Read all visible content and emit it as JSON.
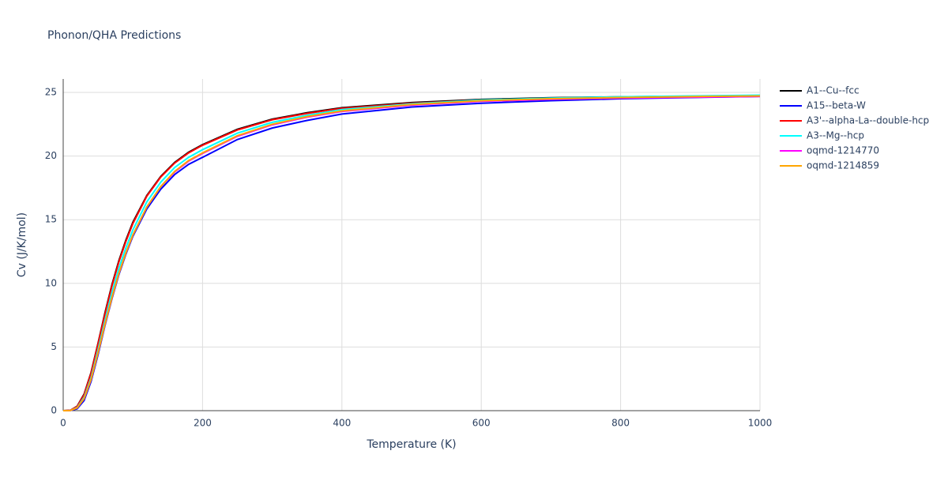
{
  "chart_data": {
    "type": "line",
    "title": "Phonon/QHA Predictions",
    "x_label": "Temperature (K)",
    "y_label": "Cv (J/K/mol)",
    "x": [
      0,
      10,
      20,
      30,
      40,
      50,
      60,
      70,
      80,
      90,
      100,
      120,
      140,
      160,
      180,
      200,
      250,
      300,
      350,
      400,
      500,
      600,
      700,
      800,
      900,
      1000
    ],
    "series": [
      {
        "name": "A1--Cu--fcc",
        "color": "#000000",
        "values": [
          0,
          0.02,
          0.35,
          1.3,
          3.0,
          5.3,
          7.7,
          9.9,
          11.8,
          13.4,
          14.8,
          16.9,
          18.4,
          19.5,
          20.3,
          20.9,
          22.1,
          22.9,
          23.4,
          23.8,
          24.2,
          24.45,
          24.58,
          24.65,
          24.7,
          24.75
        ]
      },
      {
        "name": "A15--beta-W",
        "color": "#0000ff",
        "values": [
          0,
          0.005,
          0.15,
          0.8,
          2.3,
          4.4,
          6.7,
          8.8,
          10.7,
          12.3,
          13.7,
          15.85,
          17.4,
          18.55,
          19.35,
          19.9,
          21.3,
          22.2,
          22.8,
          23.3,
          23.85,
          24.15,
          24.35,
          24.5,
          24.6,
          24.68
        ]
      },
      {
        "name": "A3'--alpha-La--double-hcp",
        "color": "#ff0000",
        "values": [
          0,
          0.02,
          0.33,
          1.25,
          2.95,
          5.25,
          7.6,
          9.8,
          11.7,
          13.3,
          14.7,
          16.85,
          18.35,
          19.45,
          20.25,
          20.85,
          22.05,
          22.85,
          23.35,
          23.75,
          24.15,
          24.4,
          24.52,
          24.6,
          24.65,
          24.7
        ]
      },
      {
        "name": "A3--Mg--hcp",
        "color": "#00ffff",
        "values": [
          0,
          0.01,
          0.25,
          1.05,
          2.6,
          4.8,
          7.1,
          9.3,
          11.2,
          12.8,
          14.2,
          16.4,
          17.95,
          19.1,
          19.9,
          20.5,
          21.8,
          22.65,
          23.2,
          23.65,
          24.1,
          24.4,
          24.55,
          24.65,
          24.72,
          24.78
        ]
      },
      {
        "name": "oqmd-1214770",
        "color": "#ff00ff",
        "values": [
          0,
          0.01,
          0.22,
          0.95,
          2.45,
          4.55,
          6.8,
          8.9,
          10.8,
          12.4,
          13.8,
          16.0,
          17.6,
          18.75,
          19.6,
          20.2,
          21.55,
          22.45,
          23.05,
          23.5,
          24.0,
          24.3,
          24.45,
          24.55,
          24.62,
          24.68
        ]
      },
      {
        "name": "oqmd-1214859",
        "color": "#ffa500",
        "values": [
          0,
          0.01,
          0.22,
          0.95,
          2.45,
          4.55,
          6.8,
          8.9,
          10.8,
          12.4,
          13.8,
          16.0,
          17.6,
          18.8,
          19.65,
          20.25,
          21.6,
          22.5,
          23.1,
          23.55,
          24.05,
          24.35,
          24.5,
          24.6,
          24.67,
          24.72
        ]
      }
    ],
    "xlim": [
      0,
      1000
    ],
    "xticks": [
      0,
      200,
      400,
      600,
      800,
      1000
    ],
    "ylim": [
      0,
      25
    ],
    "yticks": [
      0,
      5,
      10,
      15,
      20,
      25
    ],
    "grid": true
  }
}
